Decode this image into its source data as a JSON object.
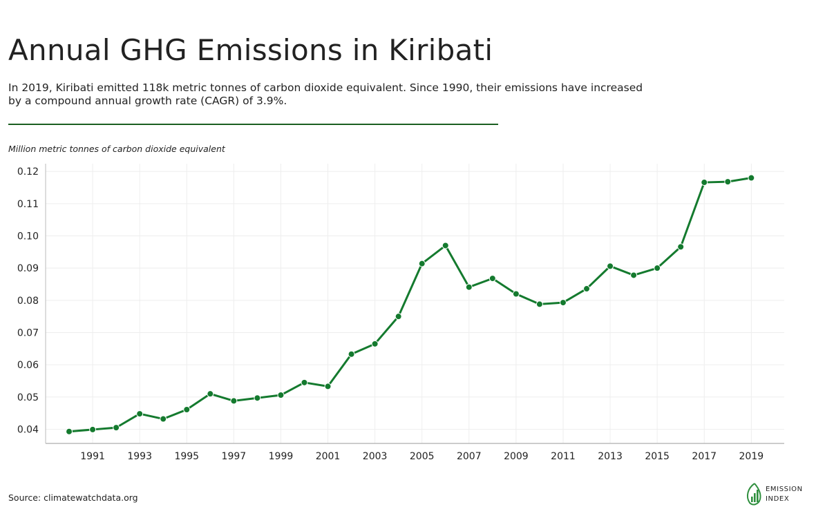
{
  "header": {
    "title": "Annual GHG Emissions in Kiribati",
    "subtitle": "In 2019, Kiribati emitted 118k metric tonnes of carbon dioxide equivalent. Since 1990, their emissions have increased by a compound annual growth rate (CAGR) of 3.9%."
  },
  "chart_data": {
    "type": "line",
    "title": "Annual GHG Emissions in Kiribati",
    "ylabel": "Million metric tonnes of carbon dioxide equivalent",
    "xlabel": "",
    "x": [
      1990,
      1991,
      1992,
      1993,
      1994,
      1995,
      1996,
      1997,
      1998,
      1999,
      2000,
      2001,
      2002,
      2003,
      2004,
      2005,
      2006,
      2007,
      2008,
      2009,
      2010,
      2011,
      2012,
      2013,
      2014,
      2015,
      2016,
      2017,
      2018,
      2019
    ],
    "series": [
      {
        "values": [
          0.0393,
          0.0399,
          0.0405,
          0.0448,
          0.0432,
          0.0461,
          0.051,
          0.0488,
          0.0497,
          0.0506,
          0.0545,
          0.0533,
          0.0633,
          0.0665,
          0.075,
          0.0914,
          0.097,
          0.0841,
          0.0868,
          0.082,
          0.0788,
          0.0793,
          0.0836,
          0.0906,
          0.0878,
          0.09,
          0.0966,
          0.1166,
          0.1168,
          0.118
        ],
        "color": "#147a2e"
      }
    ],
    "xticks": [
      1991,
      1993,
      1995,
      1997,
      1999,
      2001,
      2003,
      2005,
      2007,
      2009,
      2011,
      2013,
      2015,
      2017,
      2019
    ],
    "yticks": [
      0.04,
      0.05,
      0.06,
      0.07,
      0.08,
      0.09,
      0.1,
      0.11,
      0.12
    ],
    "ytick_labels": [
      "0.04",
      "0.05",
      "0.06",
      "0.07",
      "0.08",
      "0.09",
      "0.10",
      "0.11",
      "0.12"
    ],
    "xlim": [
      1989,
      2020.4
    ],
    "ylim": [
      0.0356,
      0.1224
    ],
    "grid": true,
    "legend": "none"
  },
  "footer": {
    "source": "Source: climatewatchdata.org",
    "logo_line1": "EMISSION",
    "logo_line2": "INDEX"
  },
  "colors": {
    "accent": "#147a2e",
    "rule": "#1a5e20",
    "grid": "#eeeeee",
    "axis": "#bbbbbb"
  }
}
